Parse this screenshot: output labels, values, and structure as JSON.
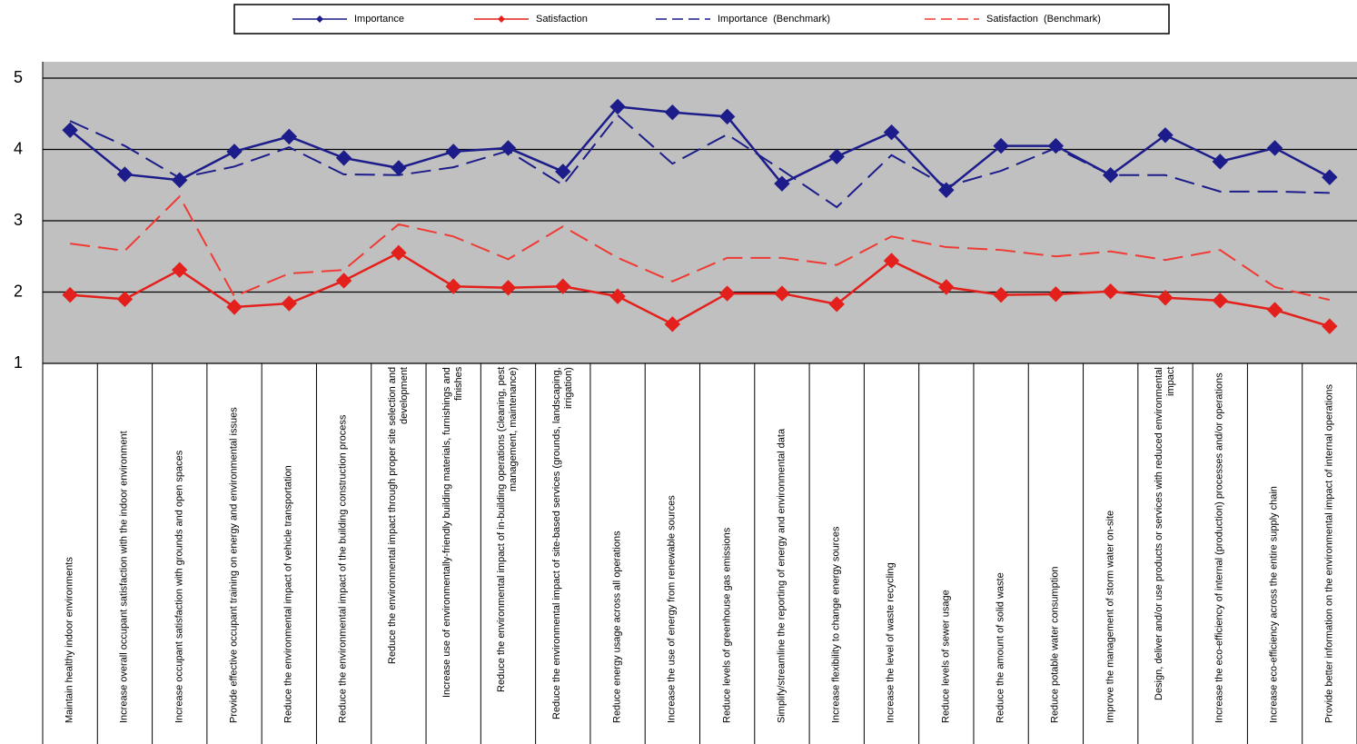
{
  "chart_data": {
    "type": "line",
    "categories": [
      "Maintain healthy indoor environments",
      "Increase overall occupant satisfaction with the indoor environment",
      "Increase occupant satisfaction with grounds and open spaces",
      "Provide effective occupant training on energy and environmental issues",
      "Reduce the environmental impact of vehicle transportation",
      "Reduce the environmental impact of the building construction process",
      "Reduce the environmental impact through proper site selection and development",
      "Increase use of environmentally-friendly building materials, furnishings and finishes",
      "Reduce the environmental impact of in-building operations (cleaning, pest management, maintenance)",
      "Reduce the environmental impact of site-based services (grounds, landscaping, irrigation)",
      "Reduce energy usage across all operations",
      "Increase the use of energy from renewable sources",
      "Reduce levels of greenhouse gas emissions",
      "Simplify/streamline the reporting of energy and environmental data",
      "Increase flexibility to change energy sources",
      "Increase the level of waste recycling",
      "Reduce levels of sewer usage",
      "Reduce the amount of solid waste",
      "Reduce potable water consumption",
      "Improve the management of storm water on-site",
      "Design, deliver and/or use products or services with reduced environmental impact",
      "Increase the eco-efficiency of internal (production) processes and/or operations",
      "Increase eco-efficiency across the entire supply chain",
      "Provide better information on the environmental impact of internal operations"
    ],
    "series": [
      {
        "name": "Importance",
        "color": "#1c1c8a",
        "dashed": false,
        "marker": "diamond",
        "values": [
          4.27,
          3.65,
          3.57,
          3.97,
          4.18,
          3.88,
          3.74,
          3.97,
          4.02,
          3.69,
          4.6,
          4.52,
          4.46,
          3.52,
          3.9,
          4.24,
          3.43,
          4.05,
          4.05,
          3.64,
          4.2,
          3.83,
          4.02,
          3.61
        ]
      },
      {
        "name": "Satisfaction",
        "color": "#e4201c",
        "dashed": false,
        "marker": "diamond",
        "values": [
          1.96,
          1.9,
          2.31,
          1.79,
          1.84,
          2.16,
          2.55,
          2.08,
          2.06,
          2.08,
          1.94,
          1.55,
          1.98,
          1.98,
          1.83,
          2.44,
          2.07,
          1.96,
          1.97,
          2.01,
          1.92,
          1.88,
          1.75,
          1.52
        ]
      },
      {
        "name": "Importance  (Benchmark)",
        "color": "#1c1c8a",
        "dashed": true,
        "marker": "none",
        "values": [
          4.4,
          4.05,
          3.6,
          3.76,
          4.03,
          3.65,
          3.64,
          3.75,
          3.98,
          3.5,
          4.48,
          3.8,
          4.21,
          3.71,
          3.19,
          3.92,
          3.48,
          3.7,
          4.02,
          3.64,
          3.64,
          3.41,
          3.41,
          3.39
        ]
      },
      {
        "name": "Satisfaction  (Benchmark)",
        "color": "#f03a34",
        "dashed": true,
        "marker": "none",
        "values": [
          2.68,
          2.58,
          3.34,
          1.94,
          2.26,
          2.31,
          2.95,
          2.78,
          2.46,
          2.92,
          2.48,
          2.15,
          2.48,
          2.48,
          2.38,
          2.78,
          2.63,
          2.59,
          2.5,
          2.57,
          2.45,
          2.59,
          2.07,
          1.89
        ]
      }
    ],
    "ylim": [
      1,
      5
    ],
    "yticks": [
      1,
      2,
      3,
      4,
      5
    ],
    "grid": true,
    "plot_background": "#c0c0c0",
    "legend": "top"
  }
}
